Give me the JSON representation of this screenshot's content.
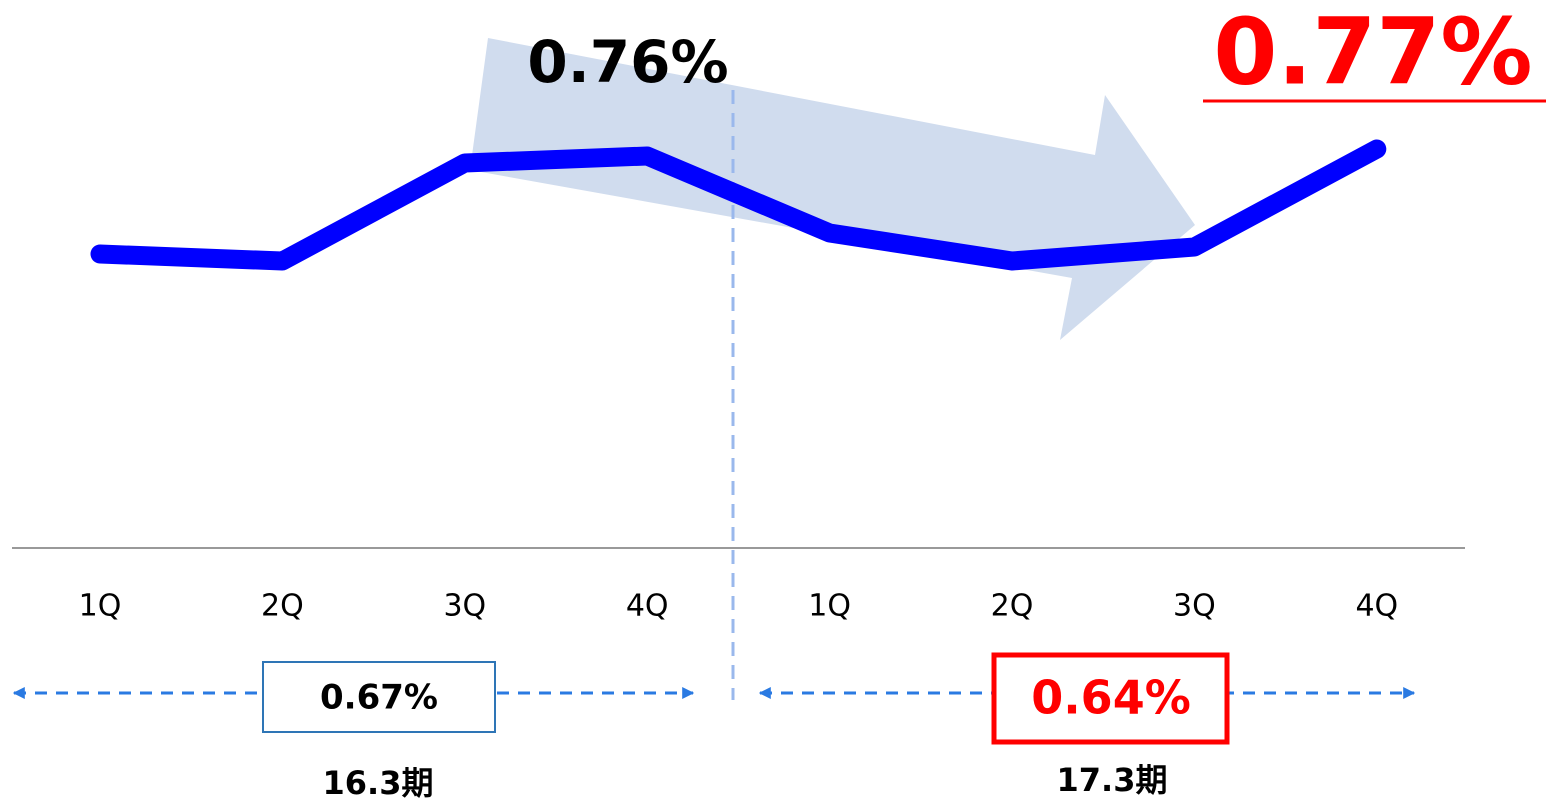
{
  "chart_data": {
    "type": "line",
    "categories": [
      "1Q",
      "2Q",
      "3Q",
      "4Q",
      "1Q",
      "2Q",
      "3Q",
      "4Q"
    ],
    "series": [
      {
        "color": "#0000ff",
        "values": [
          0.62,
          0.61,
          0.75,
          0.76,
          0.65,
          0.61,
          0.63,
          0.77
        ],
        "value_labels": [
          null,
          null,
          null,
          "0.76%",
          null,
          null,
          null,
          "0.77%"
        ]
      }
    ],
    "ylim": [
      0.2,
      0.97
    ],
    "periods": [
      {
        "label": "16.3期",
        "average": 0.67,
        "average_label": "0.67%"
      },
      {
        "label": "17.3期",
        "average": 0.64,
        "average_label": "0.64%"
      }
    ]
  }
}
